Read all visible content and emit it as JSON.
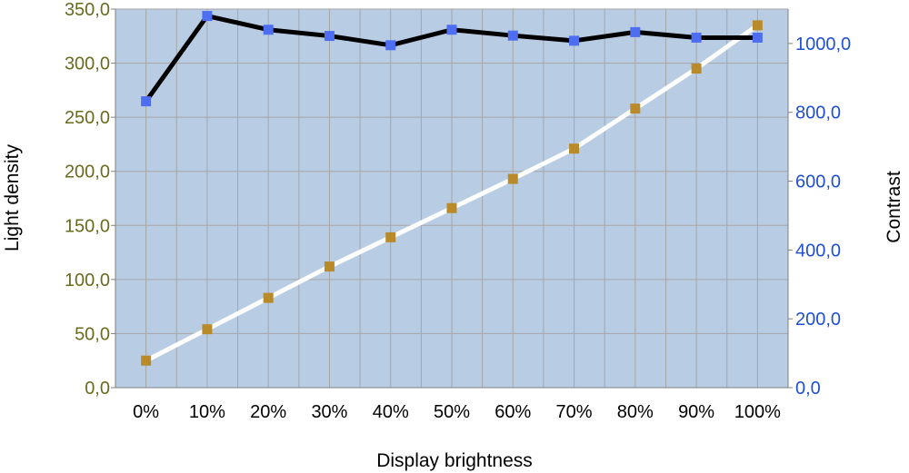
{
  "chart_data": {
    "type": "line",
    "title": "",
    "xlabel": "Display brightness",
    "ylabel": "Light density",
    "y2label": "Contrast",
    "categories": [
      "0%",
      "10%",
      "20%",
      "30%",
      "40%",
      "50%",
      "60%",
      "70%",
      "80%",
      "90%",
      "100%"
    ],
    "ylim": [
      0,
      350
    ],
    "y2lim": [
      0,
      1100
    ],
    "yticks": [
      "0,0",
      "50,0",
      "100,0",
      "150,0",
      "200,0",
      "250,0",
      "300,0",
      "350,0"
    ],
    "y2ticks": [
      "0,0",
      "200,0",
      "400,0",
      "600,0",
      "800,0",
      "1000,0"
    ],
    "grid": true,
    "series": [
      {
        "axis": "left",
        "values": [
          25,
          54,
          83,
          112,
          139,
          166,
          193,
          221,
          258,
          295,
          335
        ],
        "line_color": "#ffffff",
        "marker_color": "#b88a2a"
      },
      {
        "axis": "right",
        "values": [
          832,
          1080,
          1040,
          1022,
          995,
          1040,
          1023,
          1008,
          1033,
          1017,
          1017
        ],
        "line_color": "#000000",
        "marker_color": "#4d6ef0"
      }
    ],
    "colors": {
      "plot_bg": "#b8cce4",
      "grid": "#a6a6a6",
      "left_axis_text": "#6b6b1f",
      "right_axis_text": "#1f4fd6",
      "label_text": "#000000"
    }
  }
}
